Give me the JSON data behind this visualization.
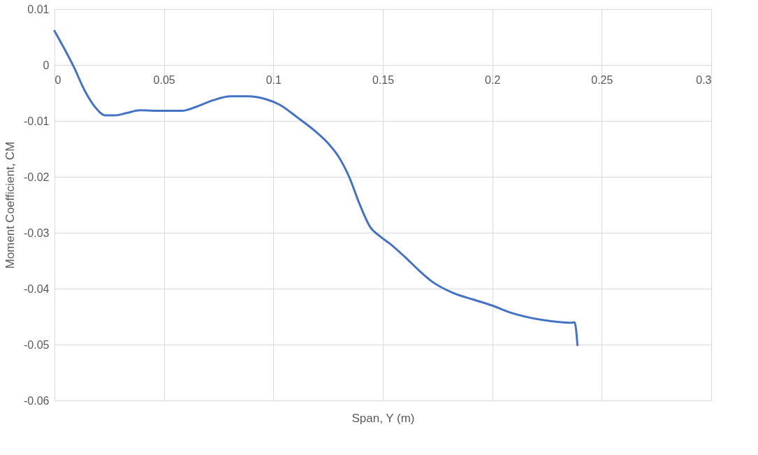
{
  "chart_data": {
    "type": "line",
    "xlabel": "Span, Y (m)",
    "ylabel": "Moment Coefficient, CM",
    "x": [
      0,
      0.0041,
      0.0089,
      0.0137,
      0.0185,
      0.0232,
      0.028,
      0.0328,
      0.0391,
      0.0487,
      0.0582,
      0.0646,
      0.0725,
      0.0805,
      0.0884,
      0.0964,
      0.1028,
      0.1107,
      0.1187,
      0.125,
      0.1298,
      0.1346,
      0.1393,
      0.1441,
      0.1489,
      0.1537,
      0.16,
      0.1664,
      0.1727,
      0.1823,
      0.1918,
      0.1998,
      0.2077,
      0.2173,
      0.2268,
      0.2364,
      0.2376,
      0.2383,
      0.2389
    ],
    "series": [
      {
        "color": "#4472c4",
        "values": [
          0.0061,
          0.0032,
          -0.0004,
          -0.0045,
          -0.0075,
          -0.009,
          -0.009,
          -0.0086,
          -0.0081,
          -0.0082,
          -0.0082,
          -0.0075,
          -0.0063,
          -0.0056,
          -0.0056,
          -0.0061,
          -0.0071,
          -0.0093,
          -0.0117,
          -0.014,
          -0.0164,
          -0.02,
          -0.0248,
          -0.0289,
          -0.0307,
          -0.0321,
          -0.0343,
          -0.0367,
          -0.0388,
          -0.0408,
          -0.042,
          -0.043,
          -0.0442,
          -0.0452,
          -0.0458,
          -0.0461,
          -0.046,
          -0.0474,
          -0.0501
        ]
      }
    ],
    "xlim": [
      0,
      0.3
    ],
    "xticks": [
      0,
      0.05,
      0.1,
      0.15,
      0.2,
      0.25,
      0.3
    ],
    "ylim": [
      -0.06,
      0.01
    ],
    "yticks": [
      -0.06,
      -0.05,
      -0.04,
      -0.03,
      -0.02,
      -0.01,
      0,
      0.01
    ],
    "grid": true,
    "marker": "none",
    "line_style": "solid"
  }
}
